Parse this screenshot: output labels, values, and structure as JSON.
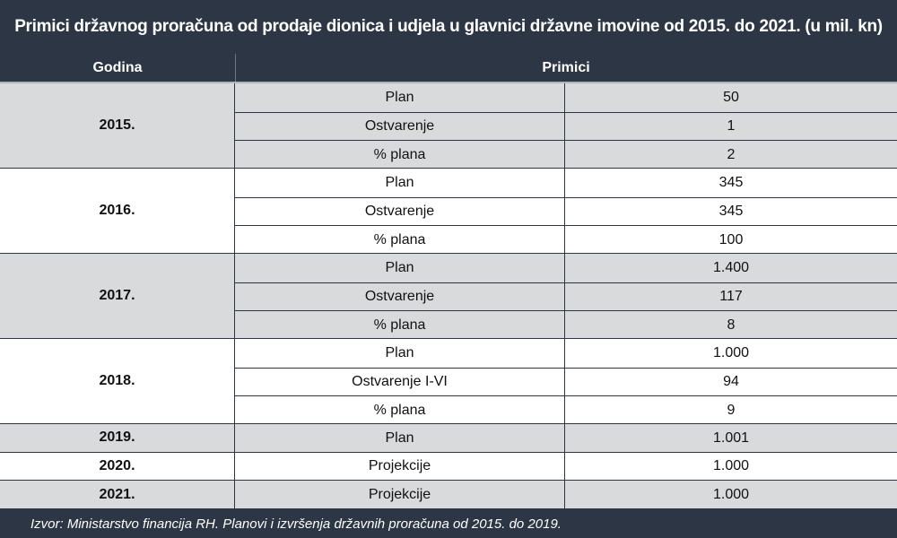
{
  "title": "Primici državnog proračuna od prodaje dionica i udjela u glavnici državne imovine od 2015. do 2021. (u mil. kn)",
  "headers": {
    "year": "Godina",
    "receipts": "Primici"
  },
  "rows": [
    {
      "year": "2015.",
      "items": [
        {
          "label": "Plan",
          "value": "50"
        },
        {
          "label": "Ostvarenje",
          "value": "1"
        },
        {
          "label": "% plana",
          "value": "2"
        }
      ]
    },
    {
      "year": "2016.",
      "items": [
        {
          "label": "Plan",
          "value": "345"
        },
        {
          "label": "Ostvarenje",
          "value": "345"
        },
        {
          "label": "% plana",
          "value": "100"
        }
      ]
    },
    {
      "year": "2017.",
      "items": [
        {
          "label": "Plan",
          "value": "1.400"
        },
        {
          "label": "Ostvarenje",
          "value": "117"
        },
        {
          "label": "% plana",
          "value": "8"
        }
      ]
    },
    {
      "year": "2018.",
      "items": [
        {
          "label": "Plan",
          "value": "1.000"
        },
        {
          "label": "Ostvarenje I-VI",
          "value": "94"
        },
        {
          "label": "% plana",
          "value": "9"
        }
      ]
    },
    {
      "year": "2019.",
      "items": [
        {
          "label": "Plan",
          "value": "1.001"
        }
      ]
    },
    {
      "year": "2020.",
      "items": [
        {
          "label": "Projekcije",
          "value": "1.000"
        }
      ]
    },
    {
      "year": "2021.",
      "items": [
        {
          "label": "Projekcije",
          "value": "1.000"
        }
      ]
    }
  ],
  "source": "Izvor: Ministarstvo financija RH. Planovi i izvršenja državnih proračuna od 2015. do 2019.",
  "colors": {
    "header_bg": "#2c3644",
    "shaded_row": "#d9dadc",
    "plain_row": "#ffffff"
  }
}
